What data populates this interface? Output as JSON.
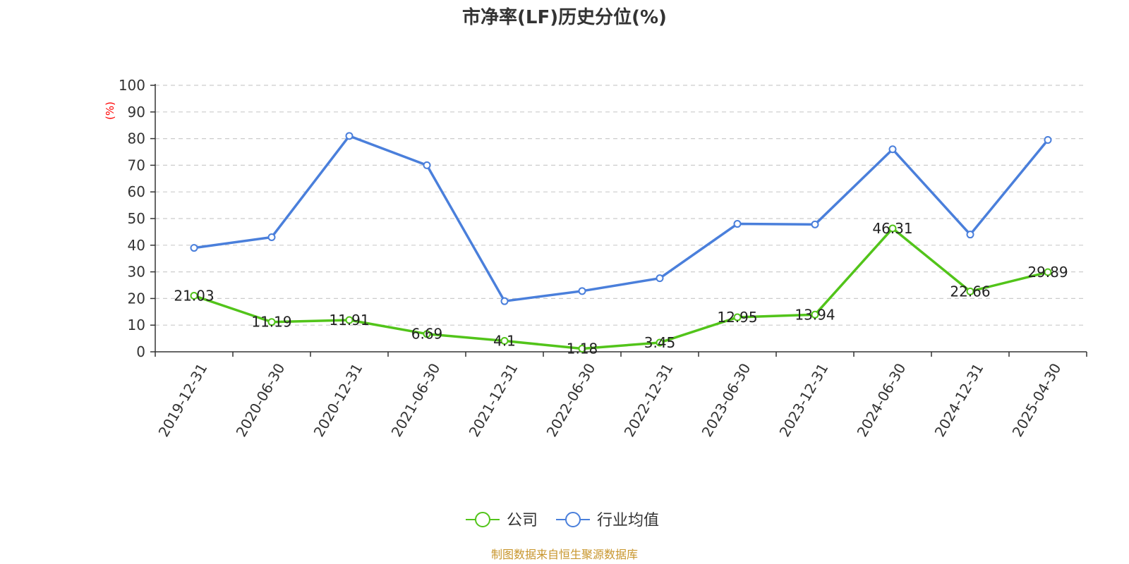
{
  "chart_data": {
    "type": "line",
    "title": "市净率(LF)历史分位(%)",
    "ylabel": "(%)",
    "xlabel": "",
    "ylim": [
      0,
      100
    ],
    "yticks": [
      0,
      10,
      20,
      30,
      40,
      50,
      60,
      70,
      80,
      90,
      100
    ],
    "grid": true,
    "legend_position": "bottom-center",
    "categories": [
      "2019-12-31",
      "2020-06-30",
      "2020-12-31",
      "2021-06-30",
      "2021-12-31",
      "2022-06-30",
      "2022-12-31",
      "2023-06-30",
      "2023-12-31",
      "2024-06-30",
      "2024-12-31",
      "2025-04-30"
    ],
    "series": [
      {
        "name": "公司",
        "color": "#52c41a",
        "values": [
          21.03,
          11.19,
          11.91,
          6.69,
          4.1,
          1.18,
          3.45,
          12.95,
          13.94,
          46.31,
          22.66,
          29.89
        ],
        "labels": [
          "21.03",
          "11.19",
          "11.91",
          "6.69",
          "4.1",
          "1.18",
          "3.45",
          "12.95",
          "13.94",
          "46.31",
          "22.66",
          "29.89"
        ]
      },
      {
        "name": "行业均值",
        "color": "#4a7fdb",
        "values": [
          39,
          43,
          81,
          70,
          19,
          22.8,
          27.6,
          48,
          47.8,
          76,
          44,
          79.5
        ]
      }
    ],
    "source": "制图数据来自恒生聚源数据库"
  },
  "colors": {
    "ylabel": "#ff0000",
    "source": "#c8962d",
    "axis": "#333333",
    "grid": "#cccccc"
  }
}
